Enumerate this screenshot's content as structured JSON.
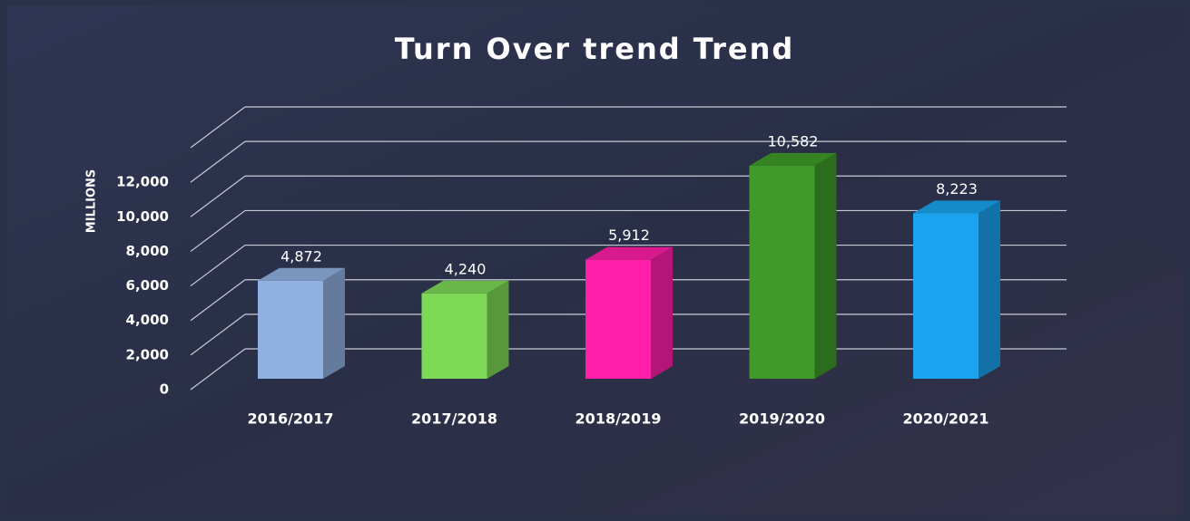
{
  "chart_data": {
    "type": "bar3d",
    "title": "Turn Over trend Trend",
    "y_label": "MILLIONS",
    "categories": [
      "2016/2017",
      "2017/2018",
      "2018/2019",
      "2019/2020",
      "2020/2021"
    ],
    "values": [
      4872,
      4240,
      5912,
      10582,
      8223
    ],
    "value_labels": [
      "4,872",
      "4,240",
      "5,912",
      "10,582",
      "8,223"
    ],
    "colors": [
      "#8fb0e0",
      "#7ed957",
      "#ff1fa8",
      "#3f9a2a",
      "#1aa3ee"
    ],
    "ylim": [
      0,
      14000
    ],
    "yticks": [
      0,
      {
        "value": 2000,
        "label": "2,000"
      },
      {
        "value": 4000,
        "label": "4,000"
      },
      {
        "value": 6000,
        "label": "6,000"
      },
      {
        "value": 8000,
        "label": "8,000"
      },
      {
        "value": 10000,
        "label": "10,000"
      },
      {
        "value": 12000,
        "label": "12,000"
      }
    ],
    "grid": true
  }
}
